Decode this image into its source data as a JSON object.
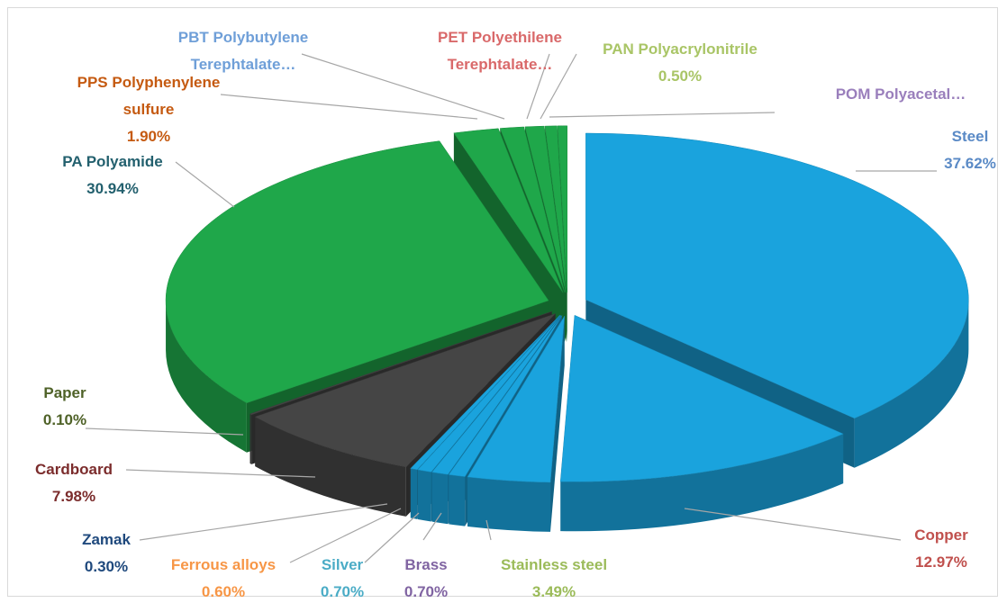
{
  "chart_data": {
    "type": "pie",
    "categories": [
      "Steel",
      "Copper",
      "Stainless steel",
      "Brass",
      "Silver",
      "Ferrous alloys",
      "Zamak",
      "Cardboard",
      "Paper",
      "PA Polyamide",
      "PPS Polyphenylene sulfure",
      "PBT Polybutylene Terephtalate…",
      "PET Polyethilene Terephtalate…",
      "PAN Polyacrylonitrile",
      "POM Polyacetal…"
    ],
    "values": [
      37.62,
      12.97,
      3.49,
      0.7,
      0.7,
      0.6,
      0.3,
      7.98,
      0.1,
      30.94,
      1.9,
      1.0,
      0.8,
      0.5,
      0.4
    ],
    "value_labels": [
      "37.62%",
      "12.97%",
      "3.49%",
      "0.70%",
      "0.70%",
      "0.60%",
      "0.30%",
      "7.98%",
      "0.10%",
      "30.94%",
      "1.90%",
      null,
      null,
      "0.50%",
      null
    ],
    "colors": [
      "#1aa3dd",
      "#1aa3dd",
      "#1aa3dd",
      "#1aa3dd",
      "#1aa3dd",
      "#1aa3dd",
      "#1aa3dd",
      "#454545",
      "#454545",
      "#1fa74a",
      "#1fa74a",
      "#1fa74a",
      "#1fa74a",
      "#1fa74a",
      "#1fa74a"
    ],
    "label_colors": [
      "#5a8ac6",
      "#c0504d",
      "#9bbb59",
      "#8064a2",
      "#4bacc6",
      "#f79646",
      "#1f497d",
      "#7b2c2c",
      "#4f6228",
      "#23606e",
      "#c55a11",
      "#6f9fd8",
      "#d9696a",
      "#a9c566",
      "#9a7fbc"
    ]
  }
}
